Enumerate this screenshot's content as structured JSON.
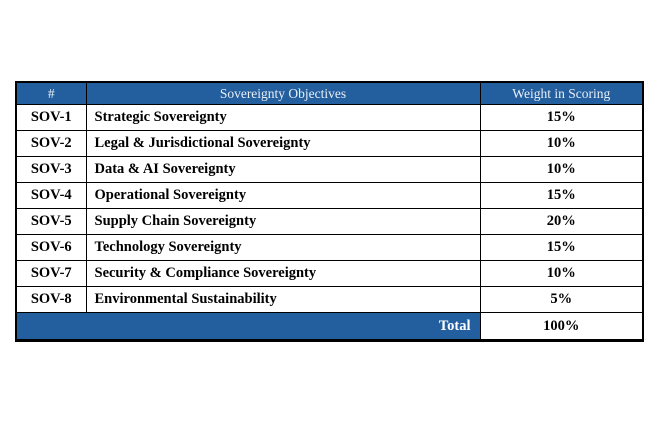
{
  "table": {
    "header": {
      "number": "#",
      "objectives": "Sovereignty Objectives",
      "weight": "Weight in Scoring"
    },
    "rows": [
      {
        "id": "SOV-1",
        "objective": "Strategic Sovereignty",
        "weight": "15%"
      },
      {
        "id": "SOV-2",
        "objective": "Legal & Jurisdictional Sovereignty",
        "weight": "10%"
      },
      {
        "id": "SOV-3",
        "objective": "Data & AI Sovereignty",
        "weight": "10%"
      },
      {
        "id": "SOV-4",
        "objective": "Operational Sovereignty",
        "weight": "15%"
      },
      {
        "id": "SOV-5",
        "objective": "Supply Chain Sovereignty",
        "weight": "20%"
      },
      {
        "id": "SOV-6",
        "objective": "Technology Sovereignty",
        "weight": "15%"
      },
      {
        "id": "SOV-7",
        "objective": "Security & Compliance Sovereignty",
        "weight": "10%"
      },
      {
        "id": "SOV-8",
        "objective": "Environmental Sustainability",
        "weight": "5%"
      }
    ],
    "total": {
      "label": "Total",
      "value": "100%"
    },
    "colors": {
      "header_bg": "#235F9E",
      "header_text": "#E9EFF7",
      "border": "#000000",
      "body_text": "#000000"
    }
  }
}
